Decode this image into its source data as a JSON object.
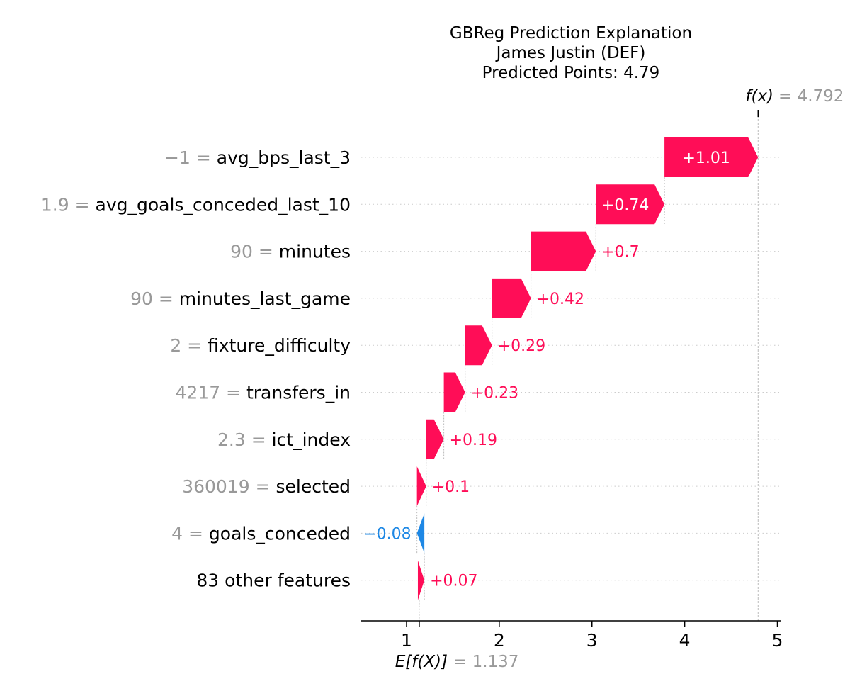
{
  "chart_data": {
    "type": "waterfall",
    "title_lines": [
      "GBReg Prediction Explanation",
      "James Justin (DEF)",
      "Predicted Points: 4.79"
    ],
    "fx_label": "f(x)",
    "fx_value": "= 4.792",
    "efx_label": "E[f(X)]",
    "efx_value": "= 1.137",
    "base_value": 1.137,
    "prediction": 4.792,
    "xlim": [
      0.5,
      5.0
    ],
    "x_ticks": [
      1,
      2,
      3,
      4,
      5
    ],
    "features": [
      {
        "value": "−1",
        "name": "avg_bps_last_3",
        "contribution": 1.01,
        "label": "+1.01"
      },
      {
        "value": "1.9",
        "name": "avg_goals_conceded_last_10",
        "contribution": 0.74,
        "label": "+0.74"
      },
      {
        "value": "90",
        "name": "minutes",
        "contribution": 0.7,
        "label": "+0.7"
      },
      {
        "value": "90",
        "name": "minutes_last_game",
        "contribution": 0.42,
        "label": "+0.42"
      },
      {
        "value": "2",
        "name": "fixture_difficulty",
        "contribution": 0.29,
        "label": "+0.29"
      },
      {
        "value": "4217",
        "name": "transfers_in",
        "contribution": 0.23,
        "label": "+0.23"
      },
      {
        "value": "2.3",
        "name": "ict_index",
        "contribution": 0.19,
        "label": "+0.19"
      },
      {
        "value": "360019",
        "name": "selected",
        "contribution": 0.1,
        "label": "+0.1"
      },
      {
        "value": "4",
        "name": "goals_conceded",
        "contribution": -0.08,
        "label": "−0.08"
      },
      {
        "value": "",
        "name": "83 other features",
        "contribution": 0.07,
        "label": "+0.07"
      }
    ],
    "colors": {
      "positive": "#ff0d57",
      "negative": "#1e88e5",
      "value_text": "#999999",
      "grid": "#cccccc"
    }
  }
}
